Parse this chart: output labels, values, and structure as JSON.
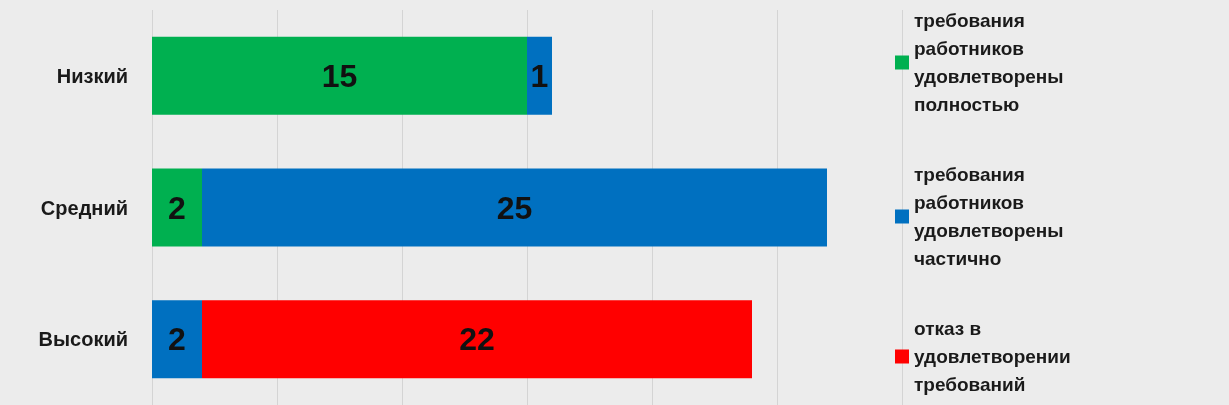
{
  "chart_data": {
    "type": "bar",
    "orientation": "horizontal",
    "stacked": true,
    "categories": [
      "Низкий",
      "Средний",
      "Высокий"
    ],
    "series": [
      {
        "name": "требования работников удовлетворены полностью",
        "color": "#00b050",
        "values": [
          15,
          2,
          null
        ]
      },
      {
        "name": "требования работников удовлетворены частично",
        "color": "#0070c0",
        "values": [
          1,
          25,
          2
        ]
      },
      {
        "name": "отказ в удовлетворении требований",
        "color": "#ff0000",
        "values": [
          null,
          null,
          22
        ]
      }
    ],
    "xlim": [
      0,
      30
    ],
    "xticks": [
      {
        "value": 0,
        "label": null
      },
      {
        "value": 5,
        "label": null
      },
      {
        "value": 10,
        "label": null
      },
      {
        "value": 15,
        "label": null
      },
      {
        "value": 20,
        "label": null
      },
      {
        "value": 25,
        "label": null
      },
      {
        "value": 30,
        "label": null
      }
    ],
    "tick_labels": "y",
    "grid": "x",
    "legend": "right",
    "data_labels": true
  }
}
